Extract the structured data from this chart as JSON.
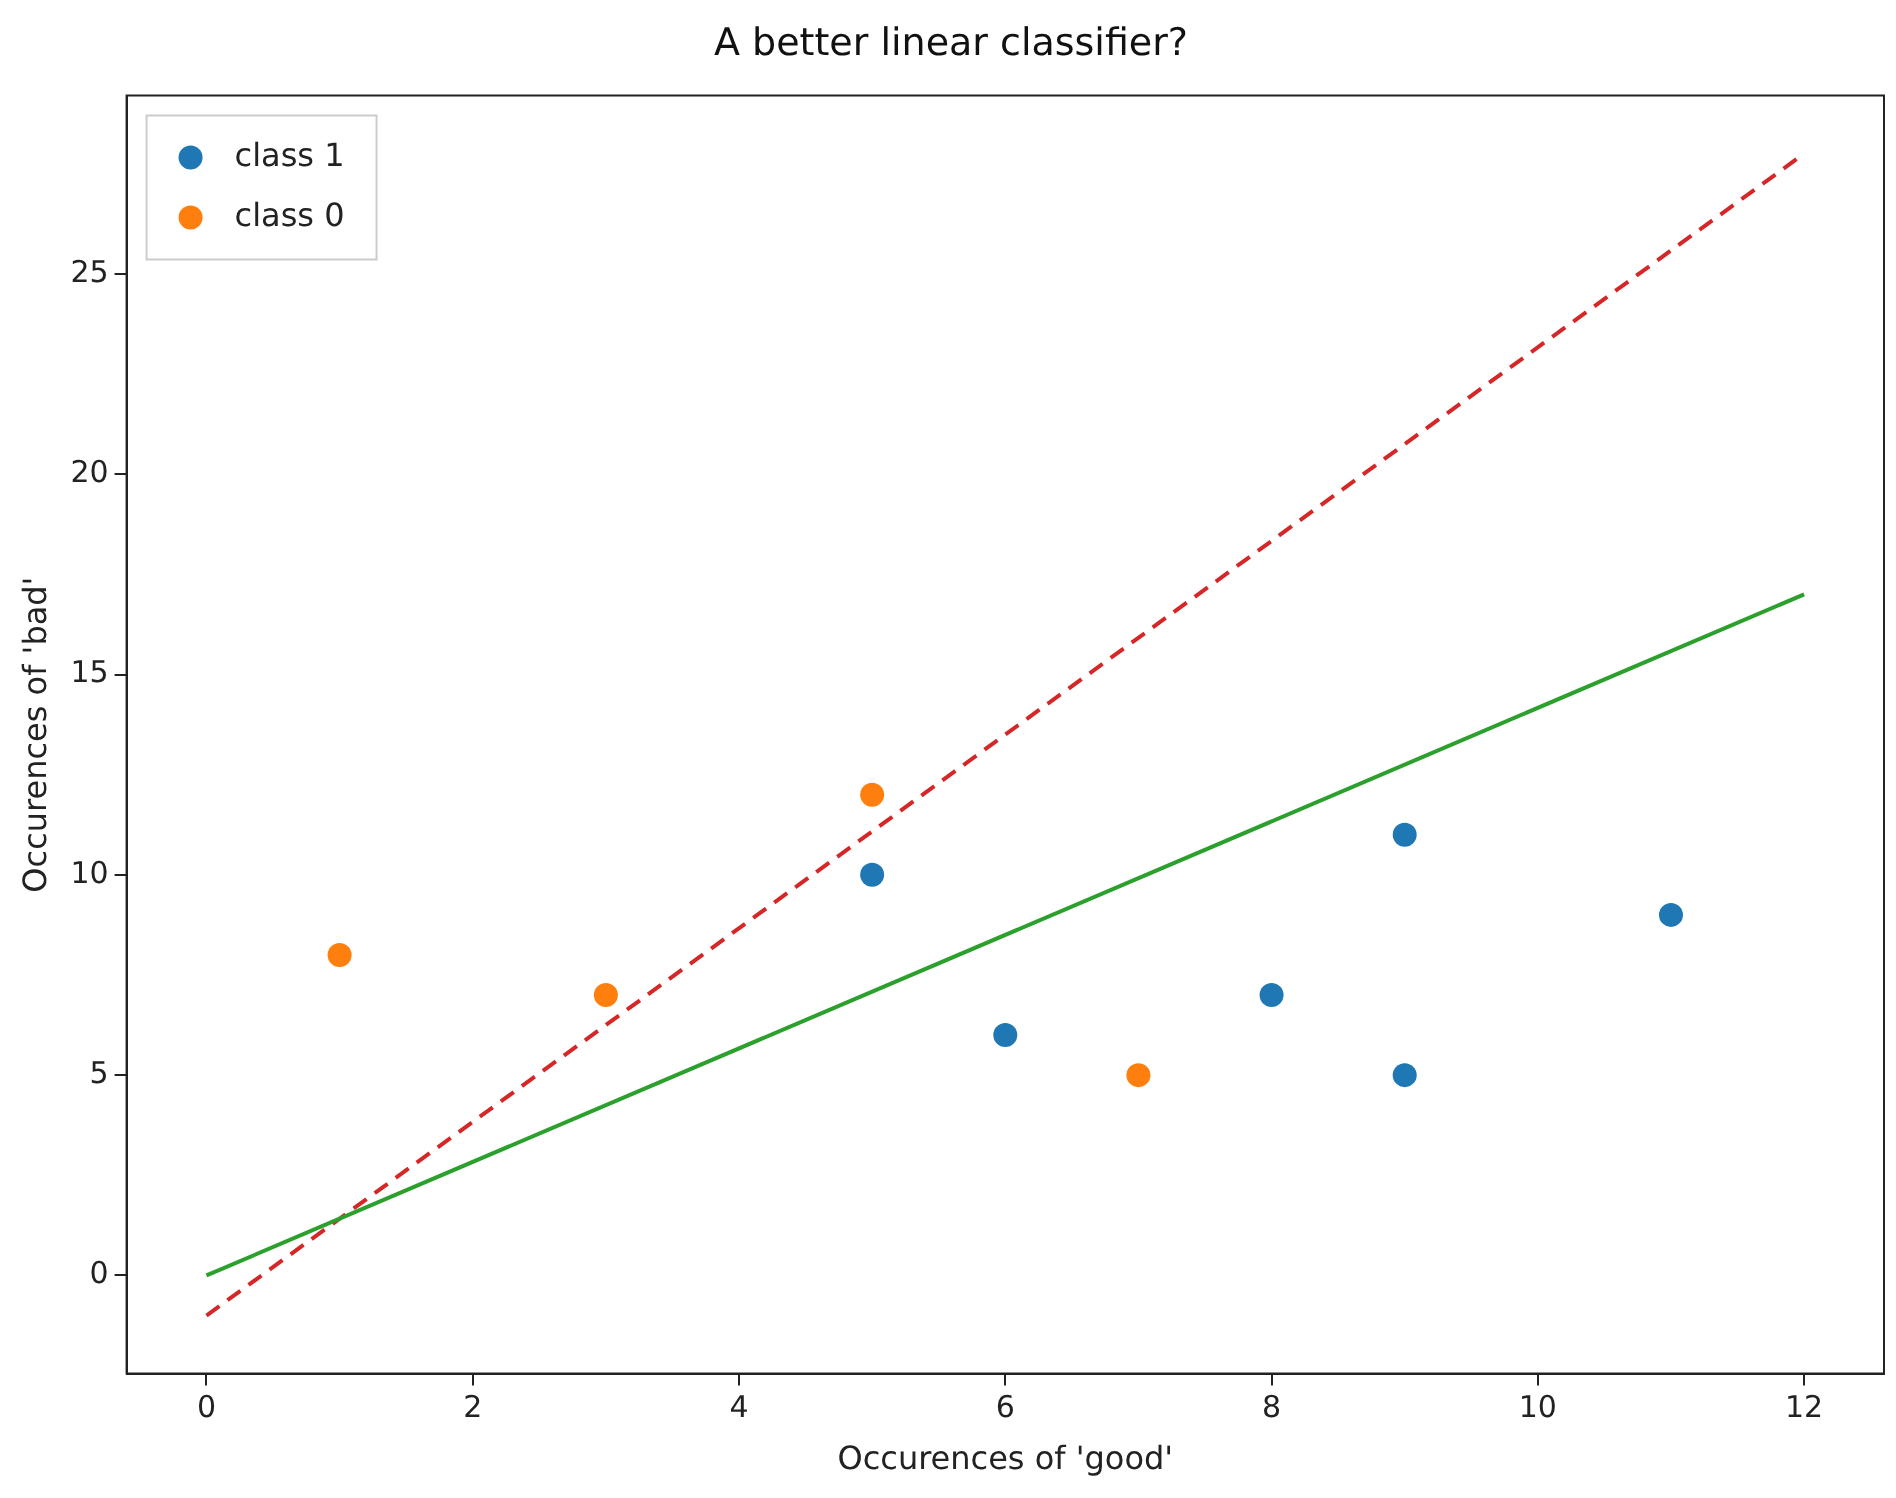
{
  "chart_data": {
    "type": "scatter",
    "title": "A better linear classifier?",
    "xlabel": "Occurences of 'good'",
    "ylabel": "Occurences of 'bad'",
    "xlim": [
      -0.6,
      12.6
    ],
    "ylim": [
      -2.45,
      29.45
    ],
    "xticks": [
      0,
      2,
      4,
      6,
      8,
      10,
      12
    ],
    "yticks": [
      0,
      5,
      10,
      15,
      20,
      25
    ],
    "grid": false,
    "legend": "top left",
    "marker": "circle",
    "series": [
      {
        "name": "class 1",
        "color": "#1f77b4",
        "x": [
          5,
          6,
          8,
          9,
          9,
          11
        ],
        "values": [
          10,
          6,
          7,
          11,
          5,
          9
        ]
      },
      {
        "name": "class 0",
        "color": "#ff7f0e",
        "x": [
          1,
          3,
          5,
          7
        ],
        "values": [
          8,
          7,
          12,
          5
        ]
      },
      {
        "type": "line",
        "color": "#2ca02c",
        "line_style": "solid",
        "marker": "none",
        "x": [
          0,
          12
        ],
        "values": [
          0,
          17
        ]
      },
      {
        "type": "line",
        "color": "#d62728",
        "line_style": "dashed",
        "marker": "none",
        "x": [
          0,
          12
        ],
        "values": [
          -1,
          28
        ]
      }
    ]
  }
}
